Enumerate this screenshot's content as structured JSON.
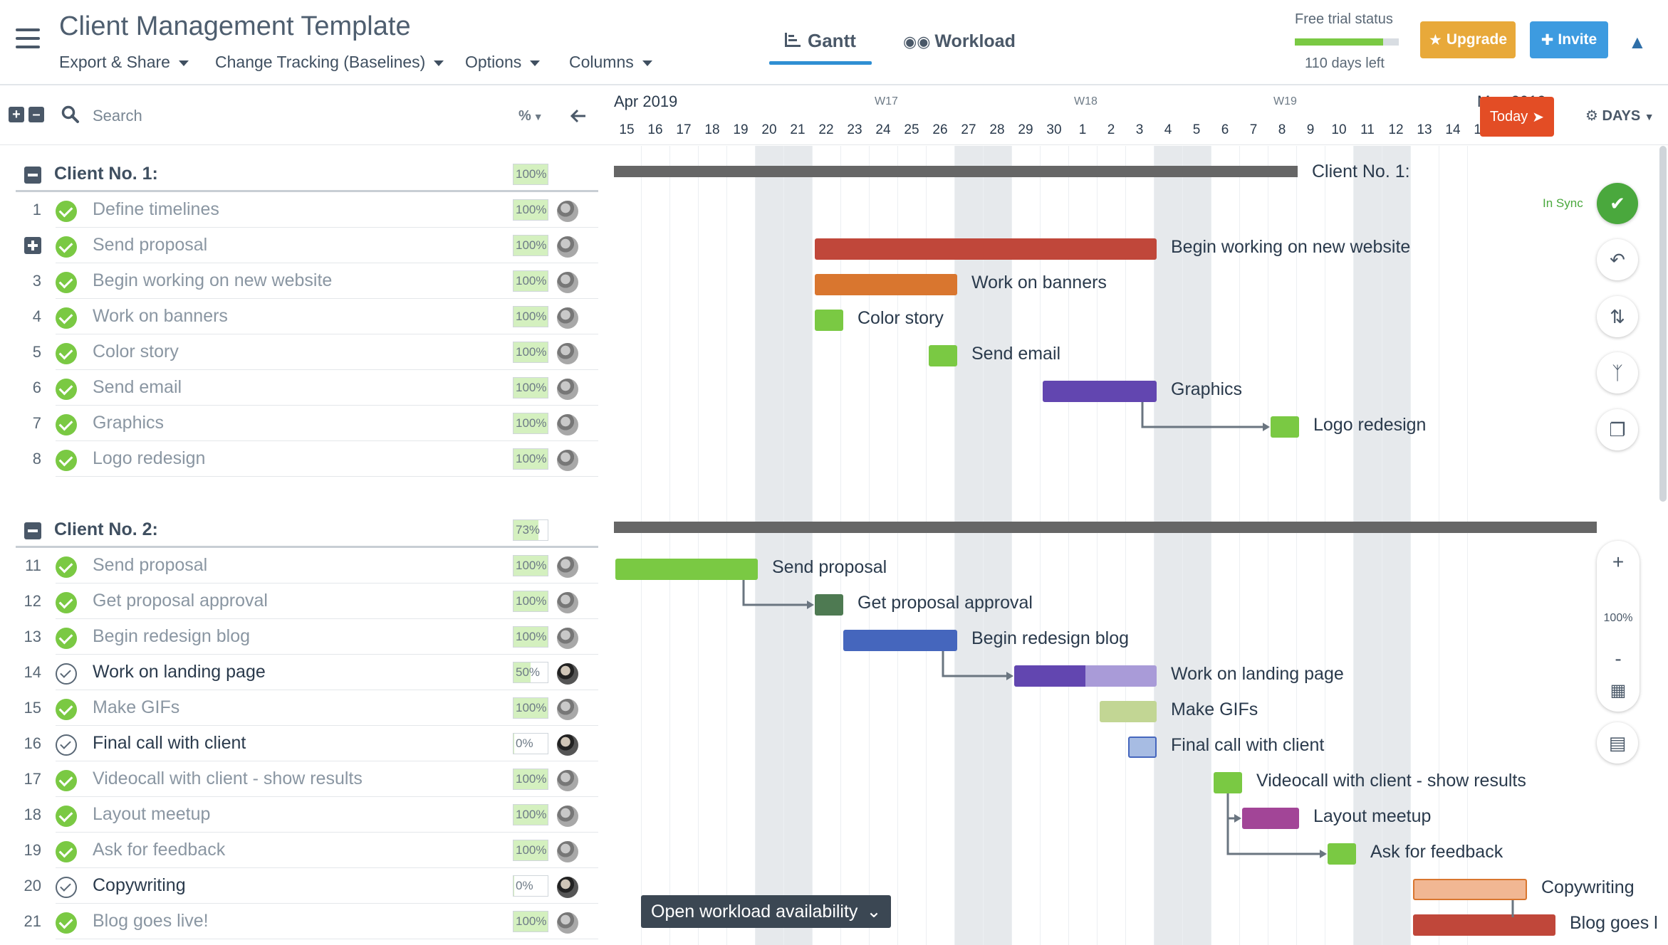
{
  "app": {
    "title": "Client Management Template",
    "menus": [
      "Export & Share",
      "Change Tracking (Baselines)",
      "Options",
      "Columns"
    ],
    "views": [
      "Gantt",
      "Workload"
    ],
    "trial": {
      "label": "Free trial status",
      "days_left": "110 days left",
      "progress": 0.85
    },
    "upgrade_label": "Upgrade",
    "invite_label": "Invite"
  },
  "toolbar": {
    "search_placeholder": "Search",
    "percent_col": "%"
  },
  "timeline": {
    "month": "Apr 2019",
    "month_next": "May 2019",
    "weeks": [
      "W17",
      "W18",
      "W19"
    ],
    "days": [
      "15",
      "16",
      "17",
      "18",
      "19",
      "20",
      "21",
      "22",
      "23",
      "24",
      "25",
      "26",
      "27",
      "28",
      "29",
      "30",
      "1",
      "2",
      "3",
      "4",
      "5",
      "6",
      "7",
      "8",
      "9",
      "10",
      "11",
      "12",
      "13",
      "14",
      "15"
    ],
    "today_label": "Today",
    "scale_label": "DAYS",
    "sync_label": "In Sync",
    "zoom_level": "100%",
    "zoom_in": "+",
    "zoom_out": "-",
    "workload_button": "Open workload availability"
  },
  "colors": {
    "red": "#c0473a",
    "orange": "#d9762f",
    "green": "#7ac943",
    "purple": "#6246b0",
    "darkgreen": "#4e7a52",
    "blue": "#4566bd",
    "purple_light": "#a99bd8",
    "olive_light": "#c2d694",
    "lightblue": "#a7bce3",
    "magenta": "#a24597",
    "peach": "#f1b793"
  },
  "groups": [
    {
      "name": "Client No. 1:",
      "percent": "100%",
      "tasks": [
        {
          "num": "1",
          "name": "Define timelines",
          "percent": "100%",
          "done": true
        },
        {
          "num": "",
          "name": "Send proposal",
          "percent": "100%",
          "done": true,
          "expand": true
        },
        {
          "num": "3",
          "name": "Begin working on new website",
          "percent": "100%",
          "done": true
        },
        {
          "num": "4",
          "name": "Work on banners",
          "percent": "100%",
          "done": true
        },
        {
          "num": "5",
          "name": "Color story",
          "percent": "100%",
          "done": true
        },
        {
          "num": "6",
          "name": "Send email",
          "percent": "100%",
          "done": true
        },
        {
          "num": "7",
          "name": "Graphics",
          "percent": "100%",
          "done": true
        },
        {
          "num": "8",
          "name": "Logo redesign",
          "percent": "100%",
          "done": true
        }
      ]
    },
    {
      "name": "Client No. 2:",
      "percent": "73%",
      "tasks": [
        {
          "num": "11",
          "name": "Send proposal",
          "percent": "100%",
          "done": true
        },
        {
          "num": "12",
          "name": "Get proposal approval",
          "percent": "100%",
          "done": true
        },
        {
          "num": "13",
          "name": "Begin redesign blog",
          "percent": "100%",
          "done": true
        },
        {
          "num": "14",
          "name": "Work on landing page",
          "percent": "50%",
          "done": false
        },
        {
          "num": "15",
          "name": "Make GIFs",
          "percent": "100%",
          "done": true
        },
        {
          "num": "16",
          "name": "Final call with client",
          "percent": "0%",
          "done": false
        },
        {
          "num": "17",
          "name": "Videocall with client - show results",
          "percent": "100%",
          "done": true
        },
        {
          "num": "18",
          "name": "Layout meetup",
          "percent": "100%",
          "done": true
        },
        {
          "num": "19",
          "name": "Ask for feedback",
          "percent": "100%",
          "done": true
        },
        {
          "num": "20",
          "name": "Copywriting",
          "percent": "0%",
          "done": false
        },
        {
          "num": "21",
          "name": "Blog goes live!",
          "percent": "100%",
          "done": true
        }
      ]
    }
  ],
  "gantt_labels": {
    "g1": "Client No. 1:",
    "t3": "Begin working on new website",
    "t4": "Work on banners",
    "t5": "Color story",
    "t6": "Send email",
    "t7": "Graphics",
    "t8": "Logo redesign",
    "t11": "Send proposal",
    "t12": "Get proposal approval",
    "t13": "Begin redesign blog",
    "t14": "Work on landing page",
    "t15": "Make GIFs",
    "t16": "Final call with client",
    "t17": "Videocall with client - show results",
    "t18": "Layout meetup",
    "t19": "Ask for feedback",
    "t20": "Copywriting",
    "t21": "Blog goes l"
  }
}
